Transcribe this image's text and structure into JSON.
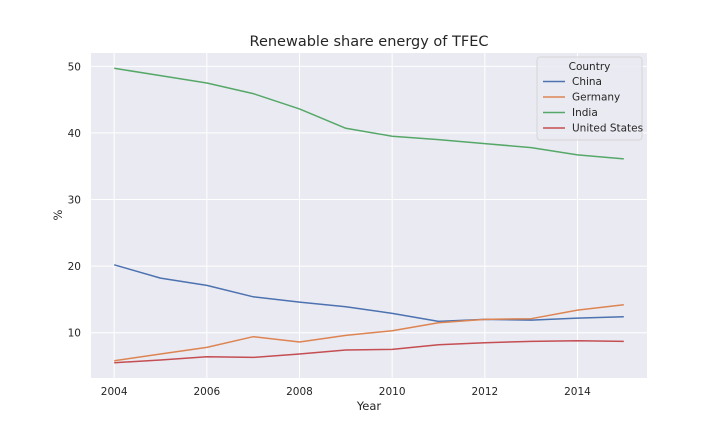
{
  "chart_data": {
    "type": "line",
    "title": "Renewable share energy of TFEC",
    "xlabel": "Year",
    "ylabel": "%",
    "xlim": [
      2003.5,
      2015.5
    ],
    "ylim": [
      3.2,
      52.0
    ],
    "xticks": [
      2004,
      2006,
      2008,
      2010,
      2012,
      2014
    ],
    "yticks": [
      10,
      20,
      30,
      40,
      50
    ],
    "grid": true,
    "legend": {
      "title": "Country",
      "position": "top-right"
    },
    "x": [
      2004,
      2005,
      2006,
      2007,
      2008,
      2009,
      2010,
      2011,
      2012,
      2013,
      2014,
      2015
    ],
    "series": [
      {
        "name": "China",
        "color": "#4c72b0",
        "values": [
          20.2,
          18.2,
          17.1,
          15.4,
          14.6,
          13.9,
          12.9,
          11.7,
          12.0,
          11.9,
          12.2,
          12.4
        ]
      },
      {
        "name": "Germany",
        "color": "#dd8452",
        "values": [
          5.8,
          6.8,
          7.8,
          9.4,
          8.6,
          9.6,
          10.3,
          11.5,
          12.0,
          12.1,
          13.4,
          14.2
        ]
      },
      {
        "name": "India",
        "color": "#55a868",
        "values": [
          49.7,
          48.6,
          47.5,
          45.9,
          43.6,
          40.7,
          39.5,
          39.0,
          38.4,
          37.8,
          36.7,
          36.1
        ]
      },
      {
        "name": "United States",
        "color": "#c44e52",
        "values": [
          5.5,
          5.9,
          6.4,
          6.3,
          6.8,
          7.4,
          7.5,
          8.2,
          8.5,
          8.7,
          8.8,
          8.7
        ]
      }
    ]
  }
}
